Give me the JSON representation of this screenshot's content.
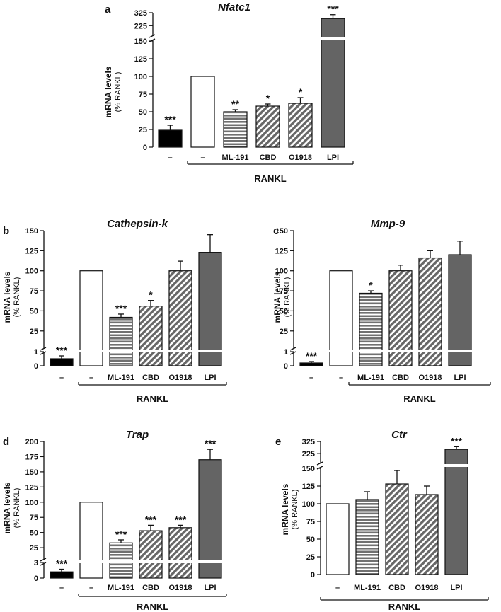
{
  "figure": {
    "group_label": "RANKL",
    "ylabel_line1": "mRNA levels",
    "ylabel_line2": "(% RANKL)"
  },
  "colors": {
    "black": "#000000",
    "white": "#ffffff",
    "stripe_gray": "#707070",
    "lpi_gray": "#646464",
    "axis": "#111111"
  },
  "chart_data": [
    {
      "panel": "a",
      "title": "Nfatc1",
      "type": "bar",
      "categories": [
        "–",
        "–",
        "ML-191",
        "CBD",
        "O1918",
        "LPI"
      ],
      "values": [
        24,
        100,
        50,
        58,
        62,
        280
      ],
      "errors": [
        7,
        0,
        3,
        3,
        8,
        30
      ],
      "significance": [
        "***",
        "",
        "**",
        "*",
        "*",
        "***"
      ],
      "patterns": [
        "black",
        "white",
        "hstripe",
        "diag",
        "diag",
        "gray"
      ],
      "yticks_lower": [
        "0",
        "25",
        "50",
        "75",
        "100",
        "125",
        "150"
      ],
      "yticks_upper": [
        "225",
        "325"
      ],
      "ylim": [
        0,
        325
      ]
    },
    {
      "panel": "b",
      "title": "Cathepsin-k",
      "type": "bar",
      "categories": [
        "–",
        "–",
        "ML-191",
        "CBD",
        "O1918",
        "LPI"
      ],
      "values": [
        0.5,
        100,
        42,
        56,
        100,
        123
      ],
      "errors": [
        0.2,
        0,
        4,
        7,
        12,
        22
      ],
      "significance": [
        "***",
        "",
        "***",
        "*",
        "",
        ""
      ],
      "patterns": [
        "black",
        "white",
        "hstripe",
        "diag",
        "diag",
        "gray"
      ],
      "yticks_lower": [
        "0",
        "1"
      ],
      "yticks_upper": [
        "25",
        "50",
        "75",
        "100",
        "125",
        "150"
      ],
      "ylim": [
        0,
        150
      ]
    },
    {
      "panel": "c",
      "title": "Mmp-9",
      "type": "bar",
      "categories": [
        "–",
        "–",
        "ML-191",
        "CBD",
        "O1918",
        "LPI"
      ],
      "values": [
        0.2,
        100,
        72,
        100,
        116,
        120
      ],
      "errors": [
        0.1,
        0,
        3,
        7,
        9,
        17
      ],
      "significance": [
        "***",
        "",
        "*",
        "",
        "",
        ""
      ],
      "patterns": [
        "black",
        "white",
        "hstripe",
        "diag",
        "diag",
        "gray"
      ],
      "yticks_lower": [
        "0",
        "1"
      ],
      "yticks_upper": [
        "25",
        "50",
        "75",
        "100",
        "125",
        "150"
      ],
      "ylim": [
        0,
        150
      ]
    },
    {
      "panel": "d",
      "title": "Trap",
      "type": "bar",
      "categories": [
        "–",
        "–",
        "ML-191",
        "CBD",
        "O1918",
        "LPI"
      ],
      "values": [
        1.2,
        100,
        33,
        53,
        58,
        170
      ],
      "errors": [
        0.5,
        0,
        5,
        9,
        4,
        17
      ],
      "significance": [
        "***",
        "",
        "***",
        "***",
        "***",
        "***"
      ],
      "patterns": [
        "black",
        "white",
        "hstripe",
        "diag",
        "diag",
        "gray"
      ],
      "yticks_lower": [
        "0",
        "3"
      ],
      "yticks_upper": [
        "25",
        "50",
        "75",
        "100",
        "125",
        "150",
        "175",
        "200"
      ],
      "ylim": [
        0,
        200
      ]
    },
    {
      "panel": "e",
      "title": "Ctr",
      "type": "bar",
      "categories": [
        "–",
        "ML-191",
        "CBD",
        "O1918",
        "LPI"
      ],
      "values": [
        100,
        106,
        128,
        113,
        260
      ],
      "errors": [
        0,
        11,
        19,
        12,
        22
      ],
      "significance": [
        "",
        "",
        "",
        "",
        "***"
      ],
      "patterns": [
        "white",
        "hstripe",
        "diag",
        "diag",
        "gray"
      ],
      "yticks_lower": [
        "0",
        "25",
        "50",
        "75",
        "100",
        "125",
        "150"
      ],
      "yticks_upper": [
        "225",
        "325"
      ],
      "ylim": [
        0,
        325
      ]
    }
  ]
}
